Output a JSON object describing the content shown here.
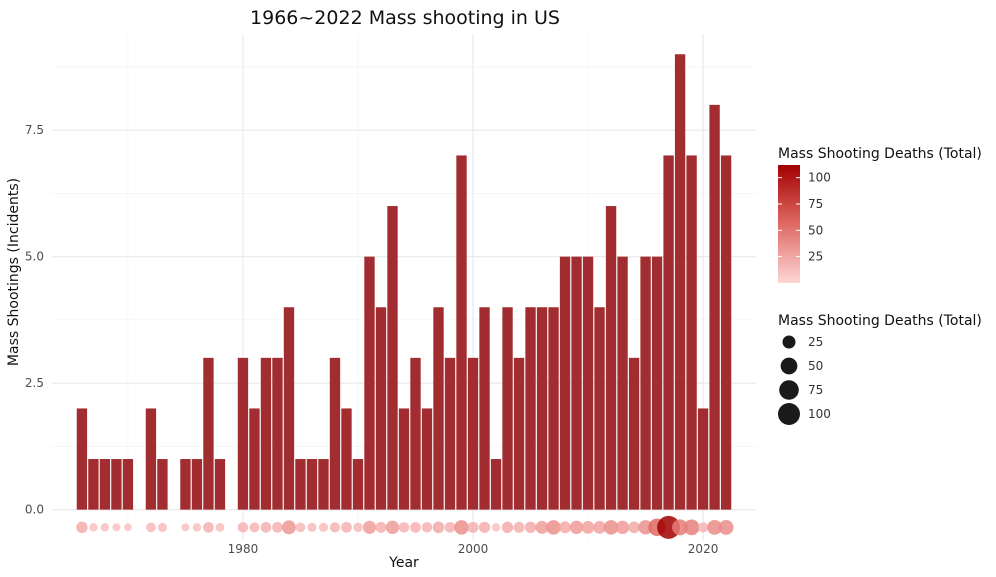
{
  "chart_data": {
    "type": "bar",
    "title": "1966~2022 Mass shooting in US",
    "xlabel": "Year",
    "ylabel": "Mass Shootings (Incidents)",
    "xlim": [
      1963.4,
      2024.6
    ],
    "ylim": [
      -0.6,
      9.4
    ],
    "x_ticks": [
      "1980",
      "2000",
      "2020"
    ],
    "x_tick_values": [
      1980,
      2000,
      2020
    ],
    "y_ticks": [
      "0.0",
      "2.5",
      "5.0",
      "7.5"
    ],
    "y_tick_values": [
      0,
      2.5,
      5,
      7.5
    ],
    "grid": true,
    "bar_color": "#a12d31",
    "years": [
      1966,
      1967,
      1968,
      1969,
      1970,
      1971,
      1972,
      1973,
      1974,
      1975,
      1976,
      1977,
      1978,
      1979,
      1980,
      1981,
      1982,
      1983,
      1984,
      1985,
      1986,
      1987,
      1988,
      1989,
      1990,
      1991,
      1992,
      1993,
      1994,
      1995,
      1996,
      1997,
      1998,
      1999,
      2000,
      2001,
      2002,
      2003,
      2004,
      2005,
      2006,
      2007,
      2008,
      2009,
      2010,
      2011,
      2012,
      2013,
      2014,
      2015,
      2016,
      2017,
      2018,
      2019,
      2020,
      2021,
      2022
    ],
    "incidents": [
      2,
      1,
      1,
      1,
      1,
      0,
      2,
      1,
      0,
      1,
      1,
      3,
      1,
      0,
      3,
      2,
      3,
      3,
      4,
      1,
      1,
      1,
      3,
      2,
      1,
      5,
      4,
      6,
      2,
      3,
      2,
      4,
      3,
      7,
      3,
      4,
      1,
      4,
      3,
      4,
      4,
      4,
      5,
      5,
      5,
      4,
      6,
      5,
      3,
      5,
      5,
      7,
      9,
      7,
      2,
      8,
      7
    ],
    "deaths": [
      17,
      6,
      6,
      5,
      4,
      0,
      10,
      8,
      0,
      5,
      6,
      14,
      7,
      0,
      13,
      11,
      14,
      14,
      30,
      10,
      8,
      8,
      12,
      14,
      9,
      26,
      15,
      27,
      13,
      14,
      13,
      18,
      14,
      34,
      15,
      16,
      6,
      17,
      15,
      17,
      25,
      34,
      19,
      27,
      23,
      23,
      34,
      27,
      18,
      33,
      56,
      112,
      45,
      43,
      12,
      36,
      36
    ],
    "dot_color_low": "#fcc9c9",
    "dot_color_high": "#a10000",
    "legends": {
      "color": {
        "title": "Mass Shooting Deaths (Total)",
        "labels": [
          "100",
          "75",
          "50",
          "25"
        ],
        "values": [
          100,
          75,
          50,
          25
        ],
        "range": [
          0,
          112
        ]
      },
      "size": {
        "title": "Mass Shooting Deaths (Total)",
        "labels": [
          "25",
          "50",
          "75",
          "100"
        ],
        "values": [
          25,
          50,
          75,
          100
        ]
      }
    }
  }
}
